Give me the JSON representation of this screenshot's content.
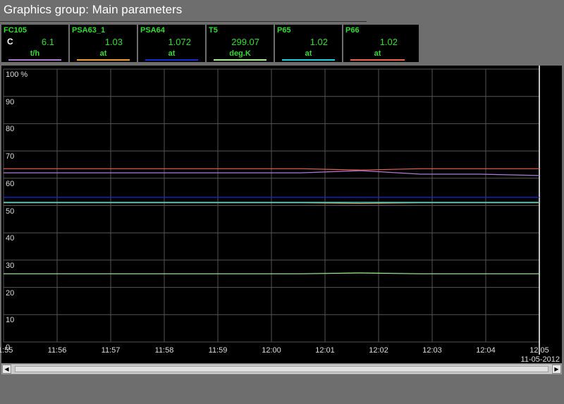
{
  "window": {
    "title": "Graphics group: Main parameters"
  },
  "tiles": [
    {
      "name": "FC105",
      "flag": "C",
      "value": "6.1",
      "unit": "t/h",
      "color": "#b07ad6"
    },
    {
      "name": "PSA63_1",
      "flag": "",
      "value": "1.03",
      "unit": "at",
      "color": "#f0a030"
    },
    {
      "name": "PSA64",
      "flag": "",
      "value": "1.072",
      "unit": "at",
      "color": "#1a2ad8"
    },
    {
      "name": "T5",
      "flag": "",
      "value": "299.07",
      "unit": "deg.K",
      "color": "#a8f090"
    },
    {
      "name": "P65",
      "flag": "",
      "value": "1.02",
      "unit": "at",
      "color": "#20d0e0"
    },
    {
      "name": "P66",
      "flag": "",
      "value": "1.02",
      "unit": "at",
      "color": "#f06050"
    }
  ],
  "chart": {
    "date_label": "11-05-2012",
    "scroll_left_icon": "arrow-left",
    "scroll_right_icon": "arrow-right"
  },
  "chart_data": {
    "type": "line",
    "ylim": [
      0,
      100
    ],
    "y_ticks": [
      "100 %",
      "90",
      "80",
      "70",
      "60",
      "50",
      "40",
      "30",
      "20",
      "10",
      "0"
    ],
    "x_ticks": [
      "11:55",
      "11:56",
      "11:57",
      "11:58",
      "11:59",
      "12:00",
      "12:01",
      "12:02",
      "12:03",
      "12:04",
      "12:05"
    ],
    "grid": true,
    "series": [
      {
        "name": "P66",
        "color": "#f06050",
        "values": [
          63.5,
          63.5,
          63.5,
          63.5,
          63.5,
          63.5,
          63.0,
          63.5,
          63.5,
          63.5
        ]
      },
      {
        "name": "FC105",
        "color": "#b07ad6",
        "values": [
          62.0,
          62.0,
          62.0,
          62.0,
          62.0,
          62.0,
          62.8,
          61.5,
          61.5,
          61.0
        ]
      },
      {
        "name": "PSA64",
        "color": "#1a2ad8",
        "values": [
          53.0,
          53.0,
          53.0,
          53.0,
          53.0,
          53.0,
          53.0,
          53.0,
          53.0,
          53.0
        ]
      },
      {
        "name": "PSA63_1",
        "color": "#f0a030",
        "values": [
          51.0,
          51.0,
          51.0,
          51.0,
          51.0,
          51.0,
          50.8,
          51.0,
          51.0,
          51.0
        ]
      },
      {
        "name": "P65",
        "color": "#20d0e0",
        "values": [
          51.2,
          51.2,
          51.2,
          51.2,
          51.2,
          51.2,
          51.2,
          51.2,
          51.2,
          51.2
        ]
      },
      {
        "name": "T5",
        "color": "#a8f090",
        "values": [
          25.0,
          25.0,
          25.0,
          25.0,
          25.0,
          25.0,
          25.3,
          25.0,
          25.0,
          25.0
        ]
      }
    ]
  }
}
